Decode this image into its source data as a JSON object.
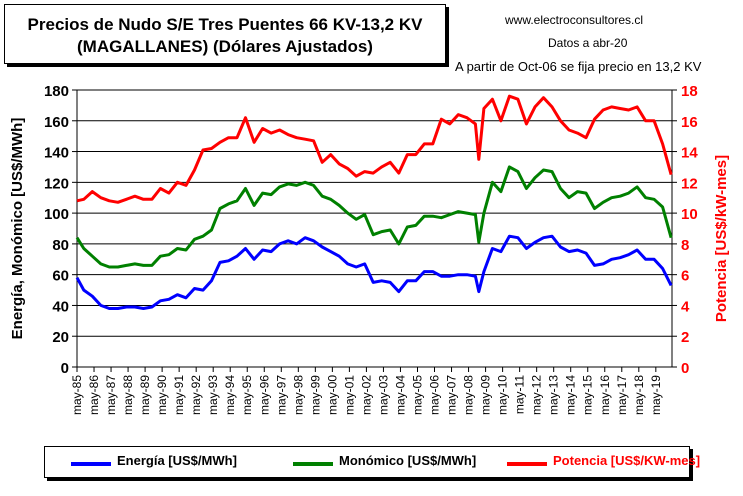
{
  "title": {
    "line1": "Precios de Nudo S/E Tres Puentes 66 KV-13,2 KV",
    "line2": "(MAGALLANES) (Dólares Ajustados)"
  },
  "info": {
    "website": "www.electroconsultores.cl",
    "date_note": "Datos a abr-20",
    "note": "A partir de Oct-06 se fija precio en 13,2 KV"
  },
  "colors": {
    "energia": "#0000ff",
    "monomico": "#008000",
    "potencia": "#ff0000"
  },
  "chart_data": {
    "type": "line",
    "xlabel": "",
    "ylabel": "Energía, Monómico [US$/MWh]",
    "y2label": "Potencia [US$/kW-mes]",
    "ylim": [
      0,
      180
    ],
    "y2lim": [
      0,
      18
    ],
    "yticks": [
      "0",
      "20",
      "40",
      "60",
      "80",
      "100",
      "120",
      "140",
      "160",
      "180"
    ],
    "y2ticks": [
      "0",
      "2",
      "4",
      "6",
      "8",
      "10",
      "12",
      "14",
      "16",
      "18"
    ],
    "xticks": [
      "may-85",
      "may-86",
      "may-87",
      "may-88",
      "may-89",
      "may-90",
      "may-91",
      "may-92",
      "may-93",
      "may-94",
      "may-95",
      "may-96",
      "may-97",
      "may-98",
      "may-99",
      "may-00",
      "may-01",
      "may-02",
      "may-03",
      "may-04",
      "may-05",
      "may-06",
      "may-07",
      "may-08",
      "may-09",
      "may-10",
      "may-11",
      "may-12",
      "may-13",
      "may-14",
      "may-15",
      "may-16",
      "may-17",
      "may-18",
      "may-19"
    ],
    "x": [
      1985.4,
      1985.8,
      1986.3,
      1986.8,
      1987.3,
      1987.8,
      1988.3,
      1988.8,
      1989.3,
      1989.8,
      1990.3,
      1990.8,
      1991.3,
      1991.8,
      1992.3,
      1992.8,
      1993.3,
      1993.8,
      1994.3,
      1994.8,
      1995.3,
      1995.8,
      1996.3,
      1996.8,
      1997.3,
      1997.8,
      1998.3,
      1998.8,
      1999.3,
      1999.8,
      2000.3,
      2000.8,
      2001.3,
      2001.8,
      2002.3,
      2002.8,
      2003.3,
      2003.8,
      2004.3,
      2004.8,
      2005.3,
      2005.8,
      2006.3,
      2006.8,
      2007.3,
      2007.8,
      2008.3,
      2008.8,
      2009.0,
      2009.3,
      2009.8,
      2010.3,
      2010.8,
      2011.3,
      2011.8,
      2012.3,
      2012.8,
      2013.3,
      2013.8,
      2014.3,
      2014.8,
      2015.3,
      2015.8,
      2016.3,
      2016.8,
      2017.3,
      2017.8,
      2018.3,
      2018.8,
      2019.3,
      2019.8,
      2020.3
    ],
    "series": [
      {
        "name": "Energía [US$/MWh]",
        "axis": "left",
        "values": [
          58,
          50,
          46,
          40,
          38,
          38,
          39,
          39,
          38,
          39,
          43,
          44,
          47,
          45,
          51,
          50,
          56,
          68,
          69,
          72,
          77,
          70,
          76,
          75,
          80,
          82,
          80,
          84,
          82,
          78,
          75,
          72,
          67,
          65,
          67,
          55,
          56,
          55,
          49,
          56,
          56,
          62,
          62,
          59,
          59,
          60,
          60,
          59,
          49,
          62,
          77,
          75,
          85,
          84,
          77,
          81,
          84,
          85,
          78,
          75,
          76,
          74,
          66,
          67,
          70,
          71,
          73,
          76,
          70,
          70,
          64,
          53
        ]
      },
      {
        "name": "Monómico [US$/MWh]",
        "axis": "left",
        "values": [
          84,
          77,
          72,
          67,
          65,
          65,
          66,
          67,
          66,
          66,
          72,
          73,
          77,
          76,
          83,
          85,
          89,
          103,
          106,
          108,
          116,
          105,
          113,
          112,
          117,
          119,
          118,
          120,
          118,
          111,
          109,
          105,
          100,
          96,
          99,
          86,
          88,
          89,
          80,
          91,
          92,
          98,
          98,
          97,
          99,
          101,
          100,
          99,
          81,
          100,
          120,
          114,
          130,
          127,
          116,
          123,
          128,
          127,
          116,
          110,
          114,
          113,
          103,
          107,
          110,
          111,
          113,
          117,
          110,
          109,
          104,
          84
        ]
      },
      {
        "name": "Potencia [US$/KW-mes]",
        "axis": "right",
        "values": [
          10.8,
          10.9,
          11.4,
          11.0,
          10.8,
          10.7,
          10.9,
          11.1,
          10.9,
          10.9,
          11.6,
          11.3,
          12.0,
          11.8,
          12.8,
          14.1,
          14.2,
          14.6,
          14.9,
          14.9,
          16.2,
          14.6,
          15.5,
          15.2,
          15.4,
          15.1,
          14.9,
          14.8,
          14.7,
          13.3,
          13.8,
          13.2,
          12.9,
          12.4,
          12.7,
          12.6,
          13.0,
          13.3,
          12.6,
          13.8,
          13.8,
          14.5,
          14.5,
          16.1,
          15.8,
          16.4,
          16.2,
          15.8,
          13.5,
          16.8,
          17.4,
          16.0,
          17.6,
          17.4,
          15.8,
          16.9,
          17.5,
          16.9,
          16.0,
          15.4,
          15.2,
          14.9,
          16.1,
          16.7,
          16.9,
          16.8,
          16.7,
          16.9,
          16.0,
          16.0,
          14.5,
          12.5
        ]
      }
    ],
    "grid": true,
    "legend": "bottom"
  }
}
